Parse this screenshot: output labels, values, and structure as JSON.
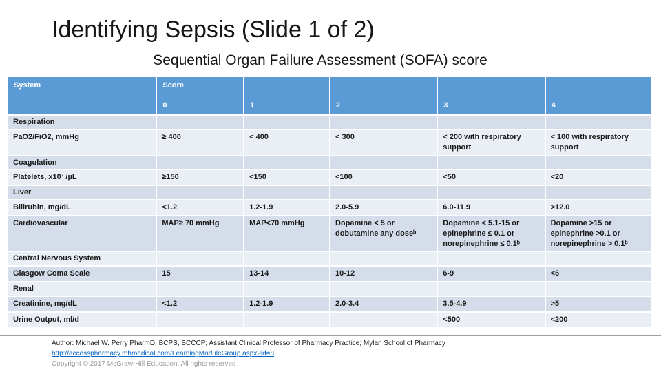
{
  "slide": {
    "title": "Identifying Sepsis (Slide 1 of 2)",
    "subtitle": "Sequential Organ Failure Assessment (SOFA) score"
  },
  "table": {
    "columns": [
      {
        "lines": [
          "System"
        ]
      },
      {
        "lines": [
          "Score",
          "0"
        ]
      },
      {
        "lines": [
          "1"
        ]
      },
      {
        "lines": [
          "2"
        ]
      },
      {
        "lines": [
          "3"
        ]
      },
      {
        "lines": [
          "4"
        ]
      }
    ],
    "rows": [
      {
        "kind": "section",
        "cells": [
          "Respiration",
          "",
          "",
          "",
          "",
          ""
        ]
      },
      {
        "kind": "data",
        "cells": [
          "PaO2/FiO2, mmHg",
          "≥ 400",
          "< 400",
          "< 300",
          "< 200 with respiratory support",
          "< 100 with respiratory support"
        ]
      },
      {
        "kind": "section",
        "cells": [
          "Coagulation",
          "",
          "",
          "",
          "",
          ""
        ]
      },
      {
        "kind": "data",
        "cells": [
          "Platelets, x10³ /µL",
          "≥150",
          "<150",
          "<100",
          "<50",
          "<20"
        ]
      },
      {
        "kind": "section",
        "cells": [
          "Liver",
          "",
          "",
          "",
          "",
          ""
        ]
      },
      {
        "kind": "data",
        "cells": [
          "Bilirubin, mg/dL",
          "<1.2",
          "1.2-1.9",
          "2.0-5.9",
          "6.0-11.9",
          ">12.0"
        ]
      },
      {
        "kind": "data",
        "cells": [
          "Cardiovascular",
          "MAP≥ 70 mmHg",
          "MAP<70 mmHg",
          "Dopamine < 5 or dobutamine any doseᵇ",
          "Dopamine < 5.1-15 or epinephrine ≤ 0.1 or norepinephrine ≤ 0.1ᵇ",
          "Dopamine >15 or epinephrine >0.1 or norepinephrine > 0.1ᵇ"
        ]
      },
      {
        "kind": "section",
        "cells": [
          "Central Nervous System",
          "",
          "",
          "",
          "",
          ""
        ]
      },
      {
        "kind": "data",
        "cells": [
          "Glasgow Coma Scale",
          "15",
          "13-14",
          "10-12",
          "6-9",
          "<6"
        ]
      },
      {
        "kind": "section",
        "cells": [
          "Renal",
          "",
          "",
          "",
          "",
          ""
        ]
      },
      {
        "kind": "data",
        "cells": [
          "Creatinine, mg/dL",
          "<1.2",
          "1.2-1.9",
          "2.0-3.4",
          "3.5-4.9",
          ">5"
        ]
      },
      {
        "kind": "data",
        "cells": [
          "Urine Output, ml/d",
          "",
          "",
          "",
          "<500",
          "<200"
        ]
      }
    ]
  },
  "footer": {
    "author": "Author: Michael W. Perry PharmD, BCPS, BCCCP; Assistant Clinical Professor of Pharmacy Practice; Mylan School of Pharmacy",
    "link": "http://accesspharmacy.mhmedical.com/LearningModuleGroup.aspx?id=8",
    "copyright": "Copyright © 2017 McGraw-Hill Education. All rights reserved"
  },
  "colors": {
    "header_bg": "#5B9BD5",
    "band_dark": "#D5DDEB",
    "band_light": "#EAEEF5",
    "link": "#0563C1"
  }
}
